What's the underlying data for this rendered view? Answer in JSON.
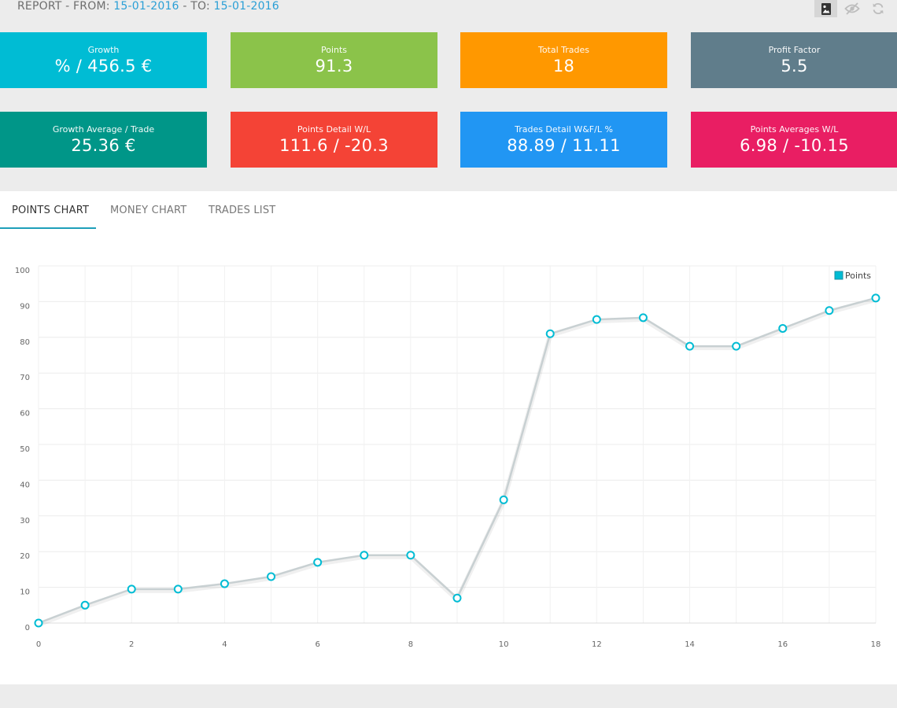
{
  "header": {
    "prefix": "REPORT - FROM: ",
    "from_date": "15-01-2016",
    "separator": " - TO: ",
    "to_date": "15-01-2016"
  },
  "toolbar": {
    "buttons": [
      {
        "icon": "image-icon",
        "active": true
      },
      {
        "icon": "eye-off-icon",
        "active": false
      },
      {
        "icon": "refresh-icon",
        "active": false
      }
    ]
  },
  "stats": [
    {
      "label": "Growth",
      "value": "% / 456.5 €",
      "color": "#00bcd4"
    },
    {
      "label": "Points",
      "value": "91.3",
      "color": "#8bc34a"
    },
    {
      "label": "Total Trades",
      "value": "18",
      "color": "#ff9800"
    },
    {
      "label": "Profit Factor",
      "value": "5.5",
      "color": "#607d8b"
    },
    {
      "label": "Growth Average / Trade",
      "value": "25.36 €",
      "color": "#009688"
    },
    {
      "label": "Points Detail W/L",
      "value": "111.6 / -20.3",
      "color": "#f44336"
    },
    {
      "label": "Trades Detail W&F/L %",
      "value": "88.89 / 11.11",
      "color": "#2196f3"
    },
    {
      "label": "Points Averages W/L",
      "value": "6.98 / -10.15",
      "color": "#e91e63"
    }
  ],
  "tabs": [
    {
      "label": "POINTS CHART",
      "active": true
    },
    {
      "label": "MONEY CHART",
      "active": false
    },
    {
      "label": "TRADES LIST",
      "active": false
    }
  ],
  "chart_data": {
    "type": "line",
    "title": "",
    "xlabel": "",
    "ylabel": "",
    "x": [
      0,
      1,
      2,
      3,
      4,
      5,
      6,
      7,
      8,
      9,
      10,
      11,
      12,
      13,
      14,
      15,
      16,
      17,
      18
    ],
    "x_ticks": [
      0,
      2,
      4,
      6,
      8,
      10,
      12,
      14,
      16,
      18
    ],
    "y_ticks": [
      0,
      10,
      20,
      30,
      40,
      50,
      60,
      70,
      80,
      90,
      100
    ],
    "xlim": [
      0,
      18
    ],
    "ylim": [
      0,
      100
    ],
    "grid": true,
    "legend": "top-right",
    "series": [
      {
        "name": "Points",
        "color": "#00bcd4",
        "line_color": "#c8d0d2",
        "values": [
          0,
          5,
          9.5,
          9.5,
          11,
          13,
          17,
          19,
          19,
          7,
          34.5,
          81,
          85,
          85.5,
          77.5,
          77.5,
          82.5,
          87.5,
          91
        ]
      }
    ]
  }
}
